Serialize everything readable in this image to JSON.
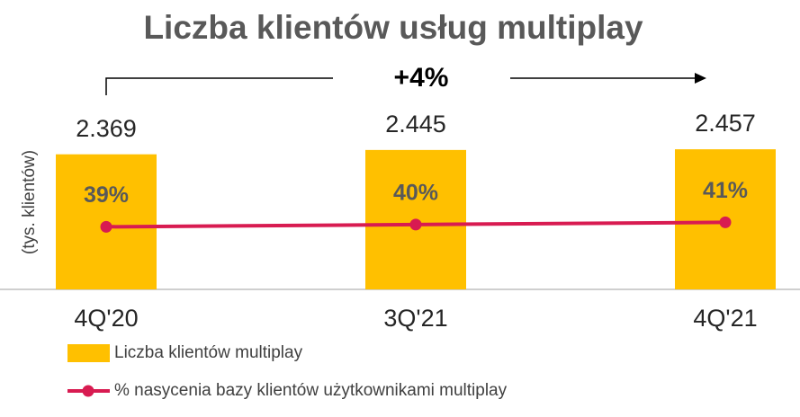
{
  "chart_data": {
    "type": "bar",
    "title": "Liczba klientów usług multiplay",
    "y_label": "(tys. klientów)",
    "annotation": "+4%",
    "categories": [
      "4Q'20",
      "3Q'21",
      "4Q'21"
    ],
    "ylim": [
      0,
      2900
    ],
    "y2lim": [
      11,
      85
    ],
    "series": [
      {
        "name": "Liczba klientów multiplay",
        "type": "bar",
        "color": "#ffc000",
        "values": [
          2369,
          2445,
          2457
        ],
        "value_labels": [
          "2.369",
          "2.445",
          "2.457"
        ]
      },
      {
        "name": "% nasycenia bazy klientów użytkownikami multiplay",
        "type": "line",
        "axis": "y2",
        "color": "#d81b51",
        "values": [
          39,
          40,
          41
        ],
        "value_labels": [
          "39%",
          "40%",
          "41%"
        ]
      }
    ]
  }
}
